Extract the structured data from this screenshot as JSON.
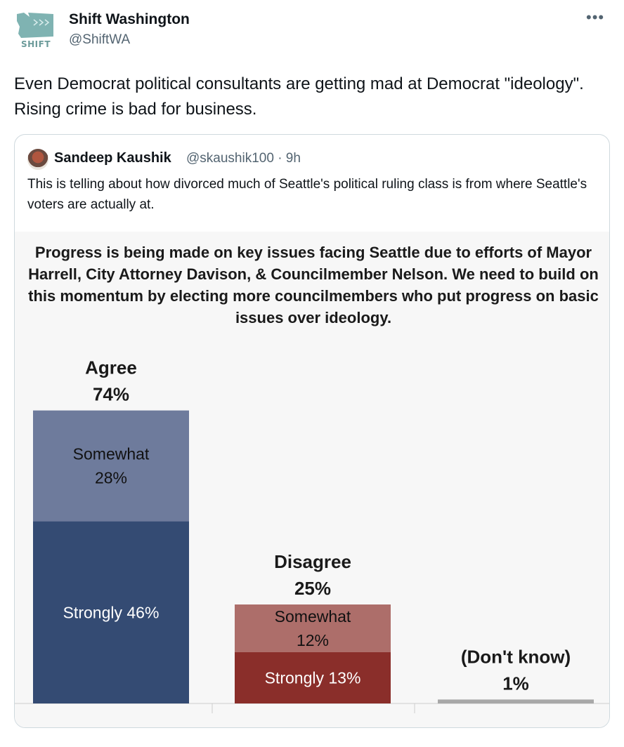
{
  "tweet": {
    "author": {
      "name": "Shift Washington",
      "handle": "@ShiftWA",
      "avatar_label": "SHIFT"
    },
    "more_icon": "more-dots-icon",
    "text": "Even Democrat political consultants are getting mad at Democrat \"ideology\". Rising crime is bad for business."
  },
  "quote": {
    "author": {
      "name": "Sandeep Kaushik",
      "handle": "@skaushik100",
      "time": "9h"
    },
    "meta": "@skaushik100 · 9h",
    "text": "This is telling about how divorced much of Seattle's political ruling class is from where Seattle's voters are actually at."
  },
  "chart_data": {
    "type": "bar",
    "title": "Progress is being made on key issues facing Seattle due to efforts of Mayor Harrell, City Attorney Davison, & Councilmember Nelson. We need to build on this momentum by electing more councilmembers who put progress on basic issues over ideology.",
    "ylim": [
      0,
      80
    ],
    "grid": false,
    "groups": [
      {
        "label": "Agree",
        "total": "74%",
        "segments": [
          {
            "label": "Strongly 46%",
            "value": 46,
            "color": "#344b73",
            "text_color": "#ffffff"
          },
          {
            "label": "Somewhat\n28%",
            "value": 28,
            "color": "#6e7b9c",
            "text_color": "#111111"
          }
        ]
      },
      {
        "label": "Disagree",
        "total": "25%",
        "segments": [
          {
            "label": "Strongly 13%",
            "value": 13,
            "color": "#8a2e2a",
            "text_color": "#ffffff"
          },
          {
            "label": "Somewhat\n12%",
            "value": 12,
            "color": "#ad6e6a",
            "text_color": "#111111"
          }
        ]
      },
      {
        "label": "(Don't know)",
        "total": "1%",
        "segments": [
          {
            "label": "",
            "value": 1,
            "color": "#a8a8a8",
            "text_color": "#111111"
          }
        ]
      }
    ]
  }
}
